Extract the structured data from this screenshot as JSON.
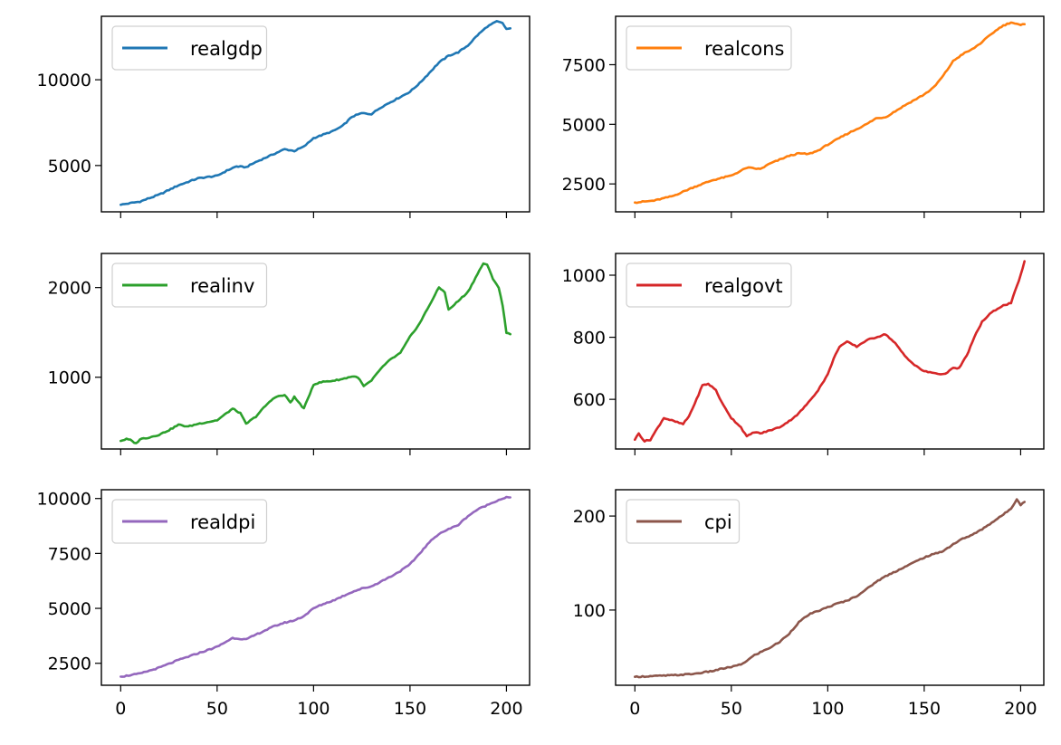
{
  "chart_data": [
    {
      "type": "line",
      "series": [
        {
          "name": "realgdp",
          "color": "#1f77b4"
        }
      ],
      "x_range": [
        0,
        202
      ],
      "xlim": [
        -10,
        212
      ],
      "ylim": [
        2300,
        13700
      ],
      "yticks": [
        5000,
        10000
      ],
      "xticks": [
        0,
        50,
        100,
        150,
        200
      ],
      "show_x_tick_labels": false,
      "keypoints": [
        [
          0,
          2710
        ],
        [
          10,
          2900
        ],
        [
          20,
          3300
        ],
        [
          30,
          3850
        ],
        [
          40,
          4250
        ],
        [
          50,
          4400
        ],
        [
          55,
          4700
        ],
        [
          60,
          4950
        ],
        [
          65,
          4900
        ],
        [
          70,
          5200
        ],
        [
          80,
          5700
        ],
        [
          85,
          5950
        ],
        [
          90,
          5850
        ],
        [
          95,
          6100
        ],
        [
          100,
          6600
        ],
        [
          110,
          7000
        ],
        [
          115,
          7300
        ],
        [
          120,
          7850
        ],
        [
          125,
          8050
        ],
        [
          130,
          8000
        ],
        [
          135,
          8400
        ],
        [
          145,
          9000
        ],
        [
          150,
          9300
        ],
        [
          155,
          9800
        ],
        [
          160,
          10400
        ],
        [
          165,
          11000
        ],
        [
          170,
          11400
        ],
        [
          175,
          11600
        ],
        [
          180,
          12000
        ],
        [
          185,
          12600
        ],
        [
          190,
          13100
        ],
        [
          195,
          13400
        ],
        [
          198,
          13300
        ],
        [
          200,
          12950
        ],
        [
          202,
          13000
        ]
      ],
      "legend_position": "upper left"
    },
    {
      "type": "line",
      "series": [
        {
          "name": "realcons",
          "color": "#ff7f0e"
        }
      ],
      "x_range": [
        0,
        202
      ],
      "xlim": [
        -10,
        212
      ],
      "ylim": [
        1330,
        9530
      ],
      "yticks": [
        2500,
        5000,
        7500
      ],
      "xticks": [
        0,
        50,
        100,
        150,
        200
      ],
      "show_x_tick_labels": false,
      "keypoints": [
        [
          0,
          1720
        ],
        [
          10,
          1800
        ],
        [
          20,
          2000
        ],
        [
          30,
          2350
        ],
        [
          40,
          2650
        ],
        [
          50,
          2850
        ],
        [
          55,
          3050
        ],
        [
          58,
          3180
        ],
        [
          62,
          3150
        ],
        [
          65,
          3120
        ],
        [
          70,
          3350
        ],
        [
          80,
          3680
        ],
        [
          85,
          3780
        ],
        [
          90,
          3750
        ],
        [
          95,
          3900
        ],
        [
          100,
          4150
        ],
        [
          110,
          4600
        ],
        [
          120,
          5000
        ],
        [
          125,
          5250
        ],
        [
          130,
          5300
        ],
        [
          140,
          5800
        ],
        [
          150,
          6250
        ],
        [
          155,
          6550
        ],
        [
          160,
          7050
        ],
        [
          165,
          7650
        ],
        [
          170,
          7950
        ],
        [
          175,
          8150
        ],
        [
          180,
          8450
        ],
        [
          185,
          8800
        ],
        [
          190,
          9100
        ],
        [
          195,
          9280
        ],
        [
          198,
          9200
        ],
        [
          200,
          9150
        ],
        [
          202,
          9200
        ]
      ],
      "legend_position": "upper left"
    },
    {
      "type": "line",
      "series": [
        {
          "name": "realinv",
          "color": "#2ca02c"
        }
      ],
      "x_range": [
        0,
        202
      ],
      "xlim": [
        -10,
        212
      ],
      "ylim": [
        200,
        2380
      ],
      "yticks": [
        1000,
        2000
      ],
      "xticks": [
        0,
        50,
        100,
        150,
        200
      ],
      "show_x_tick_labels": false,
      "keypoints": [
        [
          0,
          290
        ],
        [
          3,
          310
        ],
        [
          5,
          300
        ],
        [
          8,
          260
        ],
        [
          10,
          310
        ],
        [
          15,
          330
        ],
        [
          20,
          360
        ],
        [
          25,
          410
        ],
        [
          30,
          470
        ],
        [
          35,
          450
        ],
        [
          40,
          480
        ],
        [
          45,
          500
        ],
        [
          50,
          520
        ],
        [
          55,
          600
        ],
        [
          58,
          650
        ],
        [
          62,
          600
        ],
        [
          65,
          480
        ],
        [
          70,
          560
        ],
        [
          75,
          680
        ],
        [
          80,
          780
        ],
        [
          85,
          800
        ],
        [
          88,
          720
        ],
        [
          90,
          780
        ],
        [
          95,
          650
        ],
        [
          100,
          920
        ],
        [
          105,
          950
        ],
        [
          110,
          960
        ],
        [
          115,
          980
        ],
        [
          120,
          1010
        ],
        [
          123,
          1000
        ],
        [
          126,
          900
        ],
        [
          130,
          960
        ],
        [
          135,
          1100
        ],
        [
          140,
          1200
        ],
        [
          145,
          1270
        ],
        [
          150,
          1450
        ],
        [
          155,
          1600
        ],
        [
          160,
          1800
        ],
        [
          165,
          2000
        ],
        [
          168,
          1950
        ],
        [
          170,
          1750
        ],
        [
          175,
          1850
        ],
        [
          180,
          1950
        ],
        [
          185,
          2150
        ],
        [
          188,
          2270
        ],
        [
          190,
          2250
        ],
        [
          193,
          2100
        ],
        [
          196,
          2000
        ],
        [
          198,
          1800
        ],
        [
          200,
          1500
        ],
        [
          202,
          1480
        ]
      ],
      "legend_position": "upper left"
    },
    {
      "type": "line",
      "series": [
        {
          "name": "realgovt",
          "color": "#d62728"
        }
      ],
      "x_range": [
        0,
        202
      ],
      "xlim": [
        -10,
        212
      ],
      "ylim": [
        440,
        1070
      ],
      "yticks": [
        600,
        800,
        1000
      ],
      "xticks": [
        0,
        50,
        100,
        150,
        200
      ],
      "show_x_tick_labels": false,
      "keypoints": [
        [
          0,
          470
        ],
        [
          2,
          490
        ],
        [
          5,
          465
        ],
        [
          8,
          470
        ],
        [
          12,
          510
        ],
        [
          15,
          540
        ],
        [
          20,
          530
        ],
        [
          25,
          520
        ],
        [
          28,
          545
        ],
        [
          32,
          600
        ],
        [
          35,
          645
        ],
        [
          38,
          650
        ],
        [
          42,
          630
        ],
        [
          45,
          590
        ],
        [
          50,
          540
        ],
        [
          55,
          510
        ],
        [
          58,
          480
        ],
        [
          62,
          495
        ],
        [
          65,
          490
        ],
        [
          70,
          500
        ],
        [
          75,
          510
        ],
        [
          80,
          530
        ],
        [
          85,
          555
        ],
        [
          90,
          590
        ],
        [
          95,
          630
        ],
        [
          100,
          680
        ],
        [
          103,
          730
        ],
        [
          106,
          770
        ],
        [
          110,
          785
        ],
        [
          115,
          770
        ],
        [
          120,
          790
        ],
        [
          125,
          800
        ],
        [
          130,
          810
        ],
        [
          135,
          780
        ],
        [
          140,
          740
        ],
        [
          145,
          710
        ],
        [
          150,
          690
        ],
        [
          155,
          685
        ],
        [
          160,
          680
        ],
        [
          165,
          700
        ],
        [
          168,
          700
        ],
        [
          172,
          740
        ],
        [
          176,
          800
        ],
        [
          180,
          850
        ],
        [
          185,
          880
        ],
        [
          190,
          900
        ],
        [
          195,
          910
        ],
        [
          200,
          1000
        ],
        [
          202,
          1045
        ]
      ],
      "legend_position": "upper left"
    },
    {
      "type": "line",
      "series": [
        {
          "name": "realdpi",
          "color": "#9467bd"
        }
      ],
      "x_range": [
        0,
        202
      ],
      "xlim": [
        -10,
        212
      ],
      "ylim": [
        1500,
        10400
      ],
      "yticks": [
        2500,
        5000,
        7500,
        10000
      ],
      "xticks": [
        0,
        50,
        100,
        150,
        200
      ],
      "show_x_tick_labels": true,
      "keypoints": [
        [
          0,
          1890
        ],
        [
          10,
          2030
        ],
        [
          20,
          2300
        ],
        [
          30,
          2650
        ],
        [
          40,
          2950
        ],
        [
          50,
          3250
        ],
        [
          55,
          3500
        ],
        [
          58,
          3650
        ],
        [
          62,
          3620
        ],
        [
          65,
          3580
        ],
        [
          70,
          3800
        ],
        [
          75,
          4000
        ],
        [
          80,
          4200
        ],
        [
          85,
          4350
        ],
        [
          90,
          4450
        ],
        [
          95,
          4650
        ],
        [
          100,
          5000
        ],
        [
          105,
          5200
        ],
        [
          110,
          5350
        ],
        [
          115,
          5550
        ],
        [
          120,
          5750
        ],
        [
          125,
          5900
        ],
        [
          130,
          6000
        ],
        [
          140,
          6450
        ],
        [
          145,
          6700
        ],
        [
          150,
          7000
        ],
        [
          155,
          7500
        ],
        [
          160,
          8000
        ],
        [
          165,
          8400
        ],
        [
          170,
          8600
        ],
        [
          175,
          8800
        ],
        [
          180,
          9200
        ],
        [
          185,
          9500
        ],
        [
          190,
          9700
        ],
        [
          195,
          9900
        ],
        [
          198,
          10000
        ],
        [
          200,
          10050
        ],
        [
          202,
          10050
        ]
      ],
      "legend_position": "upper left"
    },
    {
      "type": "line",
      "series": [
        {
          "name": "cpi",
          "color": "#8c564b"
        }
      ],
      "x_range": [
        0,
        202
      ],
      "xlim": [
        -10,
        212
      ],
      "ylim": [
        20,
        228
      ],
      "yticks": [
        100,
        200
      ],
      "xticks": [
        0,
        50,
        100,
        150,
        200
      ],
      "show_x_tick_labels": true,
      "keypoints": [
        [
          0,
          28.98
        ],
        [
          10,
          29.8
        ],
        [
          20,
          30.6
        ],
        [
          30,
          32
        ],
        [
          40,
          35
        ],
        [
          45,
          37.5
        ],
        [
          50,
          39.5
        ],
        [
          55,
          42
        ],
        [
          58,
          46
        ],
        [
          62,
          52
        ],
        [
          66,
          56
        ],
        [
          70,
          60
        ],
        [
          75,
          66
        ],
        [
          80,
          75
        ],
        [
          85,
          87
        ],
        [
          90,
          95
        ],
        [
          95,
          99
        ],
        [
          100,
          103
        ],
        [
          105,
          107
        ],
        [
          110,
          110
        ],
        [
          115,
          115
        ],
        [
          120,
          122
        ],
        [
          125,
          130
        ],
        [
          130,
          136
        ],
        [
          140,
          146
        ],
        [
          150,
          156
        ],
        [
          160,
          163
        ],
        [
          165,
          170
        ],
        [
          170,
          176
        ],
        [
          175,
          180
        ],
        [
          180,
          186
        ],
        [
          185,
          193
        ],
        [
          190,
          200
        ],
        [
          195,
          208
        ],
        [
          198,
          218
        ],
        [
          200,
          212
        ],
        [
          202,
          215
        ]
      ],
      "legend_position": "upper left"
    }
  ]
}
